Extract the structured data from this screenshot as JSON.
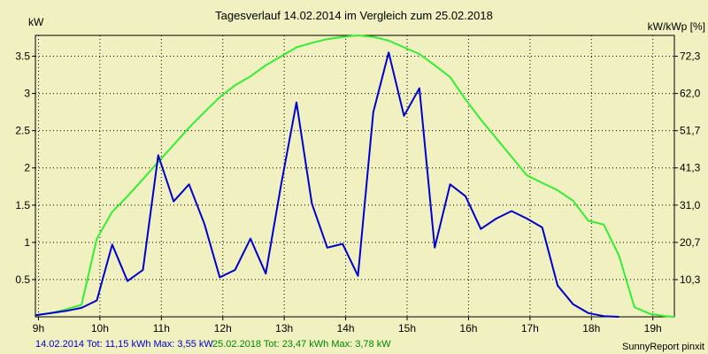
{
  "chart_data": {
    "type": "line",
    "title": "Tagesverlauf 14.02.2014 im Vergleich zum 25.02.2018",
    "ylabel_left": "kW",
    "ylabel_right": "kW/kWp [%]",
    "x_range": [
      8.95,
      19.35
    ],
    "ylim": [
      0,
      3.78
    ],
    "grid": true,
    "x_ticks": [
      {
        "value": 9,
        "label": "9h"
      },
      {
        "value": 10,
        "label": "10h"
      },
      {
        "value": 11,
        "label": "11h"
      },
      {
        "value": 12,
        "label": "12h"
      },
      {
        "value": 13,
        "label": "13h"
      },
      {
        "value": 14,
        "label": "14h"
      },
      {
        "value": 15,
        "label": "15h"
      },
      {
        "value": 16,
        "label": "16h"
      },
      {
        "value": 17,
        "label": "17h"
      },
      {
        "value": 18,
        "label": "18h"
      },
      {
        "value": 19,
        "label": "19h"
      }
    ],
    "y_ticks": [
      {
        "value": 0.5,
        "label": "0.5"
      },
      {
        "value": 1.0,
        "label": "1"
      },
      {
        "value": 1.5,
        "label": "1.5"
      },
      {
        "value": 2.0,
        "label": "2"
      },
      {
        "value": 2.5,
        "label": "2.5"
      },
      {
        "value": 3.0,
        "label": "3"
      },
      {
        "value": 3.5,
        "label": "3.5"
      }
    ],
    "y_ticks_right": [
      {
        "value": 0.5,
        "label": "10,3"
      },
      {
        "value": 1.0,
        "label": "20,7"
      },
      {
        "value": 1.5,
        "label": "31,0"
      },
      {
        "value": 2.0,
        "label": "41,3"
      },
      {
        "value": 2.5,
        "label": "51,7"
      },
      {
        "value": 3.0,
        "label": "62,0"
      },
      {
        "value": 3.5,
        "label": "72,3"
      }
    ],
    "series": [
      {
        "color": "#0000cc",
        "x": [
          8.95,
          9.2,
          9.45,
          9.7,
          9.95,
          10.2,
          10.45,
          10.7,
          10.95,
          11.2,
          11.45,
          11.7,
          11.95,
          12.2,
          12.45,
          12.7,
          12.95,
          13.2,
          13.45,
          13.7,
          13.95,
          14.2,
          14.45,
          14.7,
          14.95,
          15.2,
          15.45,
          15.7,
          15.95,
          16.2,
          16.45,
          16.7,
          16.95,
          17.2,
          17.45,
          17.7,
          17.95,
          18.2,
          18.45
        ],
        "y": [
          0.02,
          0.05,
          0.08,
          0.12,
          0.22,
          0.97,
          0.48,
          0.63,
          2.17,
          1.55,
          1.78,
          1.25,
          0.53,
          0.63,
          1.05,
          0.58,
          1.78,
          2.88,
          1.52,
          0.93,
          0.98,
          0.55,
          2.75,
          3.55,
          2.7,
          3.07,
          0.93,
          1.78,
          1.62,
          1.18,
          1.32,
          1.42,
          1.32,
          1.2,
          0.42,
          0.17,
          0.05,
          0.01,
          0.0
        ]
      },
      {
        "color": "#33ee33",
        "x": [
          8.95,
          9.2,
          9.45,
          9.7,
          9.95,
          10.2,
          10.45,
          10.7,
          10.95,
          11.2,
          11.45,
          11.7,
          11.95,
          12.2,
          12.45,
          12.7,
          12.95,
          13.2,
          13.45,
          13.7,
          13.95,
          14.2,
          14.45,
          14.7,
          14.95,
          15.2,
          15.45,
          15.7,
          15.95,
          16.2,
          16.45,
          16.7,
          16.95,
          17.2,
          17.45,
          17.7,
          17.95,
          18.2,
          18.45,
          18.7,
          18.95,
          19.2,
          19.35
        ],
        "y": [
          0.02,
          0.05,
          0.1,
          0.16,
          1.05,
          1.41,
          1.62,
          1.85,
          2.08,
          2.31,
          2.54,
          2.75,
          2.95,
          3.11,
          3.23,
          3.38,
          3.5,
          3.62,
          3.68,
          3.73,
          3.76,
          3.78,
          3.76,
          3.71,
          3.62,
          3.53,
          3.38,
          3.22,
          2.92,
          2.65,
          2.4,
          2.15,
          1.9,
          1.8,
          1.7,
          1.56,
          1.29,
          1.24,
          0.82,
          0.13,
          0.04,
          0.01,
          0.0
        ]
      }
    ]
  },
  "footer": {
    "left_label": "14.02.2014 Tot: 11,15 kWh Max: 3,55 kW",
    "right_label": "25.02.2018 Tot: 23,47 kWh Max: 3,78 kW",
    "credit": "SunnyReport pinxit"
  }
}
